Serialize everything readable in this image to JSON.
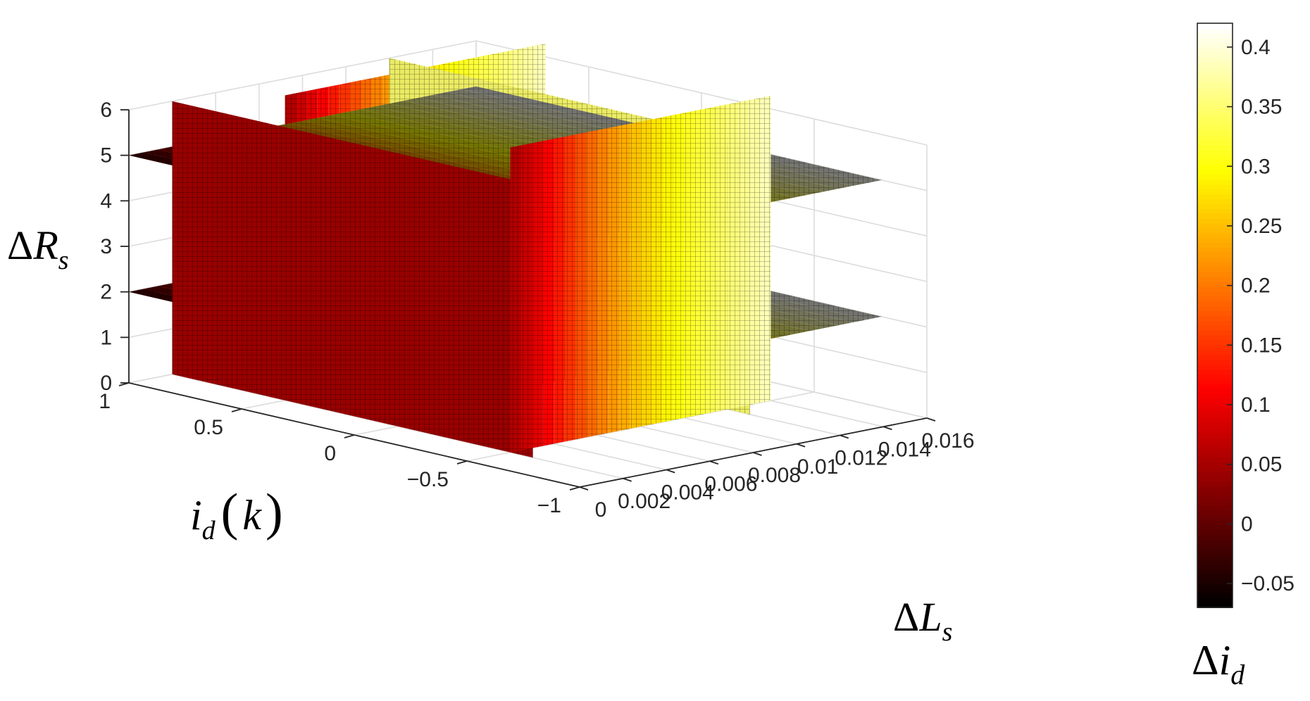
{
  "chart_data": {
    "type": "slice-3d",
    "title": "",
    "x_axis": {
      "label_symbol": "Δ",
      "label_main": "L",
      "label_sub": "s",
      "lim": [
        0,
        0.016
      ],
      "ticks": [
        0,
        0.002,
        0.004,
        0.006,
        0.008,
        0.01,
        0.012,
        0.014,
        0.016
      ],
      "tick_labels": [
        "0",
        "0.002",
        "0.004",
        "0.006",
        "0.008",
        "0.01",
        "0.012",
        "0.014",
        "0.016"
      ]
    },
    "y_axis": {
      "label_main": "i",
      "label_sub": "d",
      "label_arg": "k",
      "lim": [
        -1,
        1
      ],
      "ticks": [
        -1,
        -0.5,
        0,
        0.5,
        1
      ],
      "tick_labels": [
        "−1",
        "−0.5",
        "0",
        "0.5",
        "1"
      ]
    },
    "z_axis": {
      "label_symbol": "Δ",
      "label_main": "R",
      "label_sub": "s",
      "lim": [
        0,
        6
      ],
      "ticks": [
        0,
        1,
        2,
        3,
        4,
        5,
        6
      ],
      "tick_labels": [
        "0",
        "1",
        "2",
        "3",
        "4",
        "5",
        "6"
      ]
    },
    "slices": {
      "x_planes": [
        0.002,
        0.012
      ],
      "y_planes": [
        -0.5,
        0.5
      ],
      "z_planes": [
        2,
        5
      ],
      "x_range": [
        0.001,
        0.015
      ],
      "y_range": [
        -0.6,
        0.8
      ],
      "z_range": [
        0,
        6
      ]
    },
    "color_variable": "Δi_d",
    "approx_color_vs_x": [
      {
        "x": 0.0,
        "value": -0.02
      },
      {
        "x": 0.002,
        "value": 0.05
      },
      {
        "x": 0.004,
        "value": 0.12
      },
      {
        "x": 0.006,
        "value": 0.2
      },
      {
        "x": 0.008,
        "value": 0.26
      },
      {
        "x": 0.01,
        "value": 0.31
      },
      {
        "x": 0.012,
        "value": 0.35
      },
      {
        "x": 0.014,
        "value": 0.39
      },
      {
        "x": 0.016,
        "value": 0.42
      }
    ],
    "colorbar": {
      "label_symbol": "Δ",
      "label_main": "i",
      "label_sub": "d",
      "lim": [
        -0.07,
        0.42
      ],
      "ticks": [
        -0.05,
        0,
        0.05,
        0.1,
        0.15,
        0.2,
        0.25,
        0.3,
        0.35,
        0.4
      ],
      "tick_labels": [
        "−0.05",
        "0",
        "0.05",
        "0.1",
        "0.15",
        "0.2",
        "0.25",
        "0.3",
        "0.35",
        "0.4"
      ],
      "colormap": "hot",
      "placement": "right"
    },
    "grid": true
  }
}
